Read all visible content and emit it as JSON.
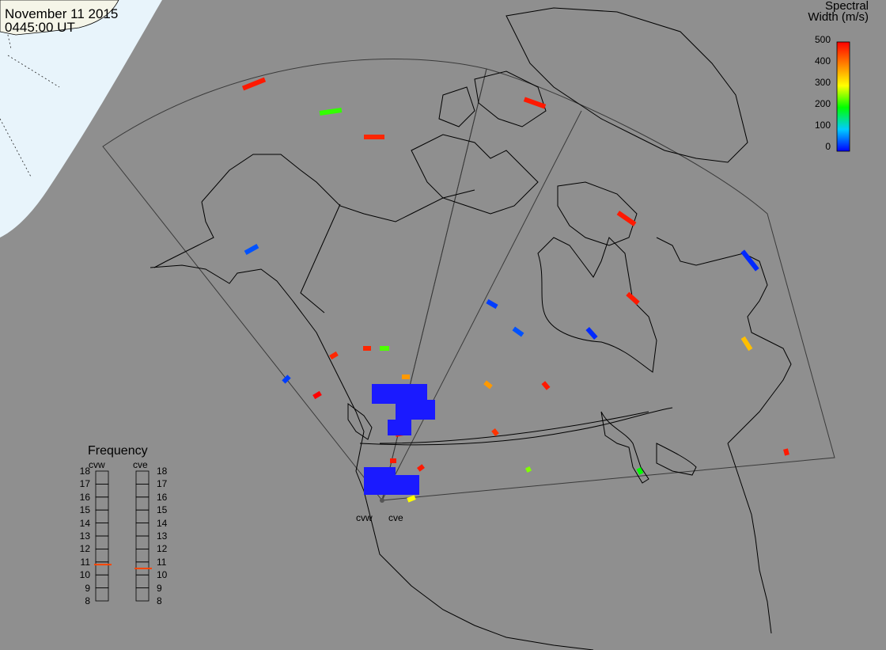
{
  "header": {
    "date": "November 11 2015",
    "time": "0445:00 UT"
  },
  "colors": {
    "background": "#8f8f8f",
    "night_region": "#e8f4fb",
    "land_line": "#000000",
    "fov_line": "#3a3a3a"
  },
  "colorbar": {
    "title_line1": "Spectral",
    "title_line2": "Width (m/s)",
    "ticks": [
      "500",
      "400",
      "300",
      "200",
      "100",
      "0"
    ],
    "min": 0,
    "max": 500
  },
  "frequency": {
    "title": "Frequency",
    "radars": [
      {
        "name": "cvw",
        "value": 10.8
      },
      {
        "name": "cve",
        "value": 10.5
      }
    ],
    "scale": [
      "18",
      "17",
      "16",
      "15",
      "14",
      "13",
      "12",
      "11",
      "10",
      "9",
      "8"
    ],
    "min": 8,
    "max": 18
  },
  "sites": [
    {
      "name": "cvw"
    },
    {
      "name": "cve"
    }
  ],
  "scatter": {
    "description_values_m_s": [
      480,
      220,
      470,
      480,
      40,
      480,
      30,
      480,
      40,
      20,
      20,
      350,
      480,
      470,
      470,
      230,
      380,
      380,
      480,
      460,
      200,
      250,
      30,
      500,
      480,
      480,
      480,
      300
    ]
  }
}
